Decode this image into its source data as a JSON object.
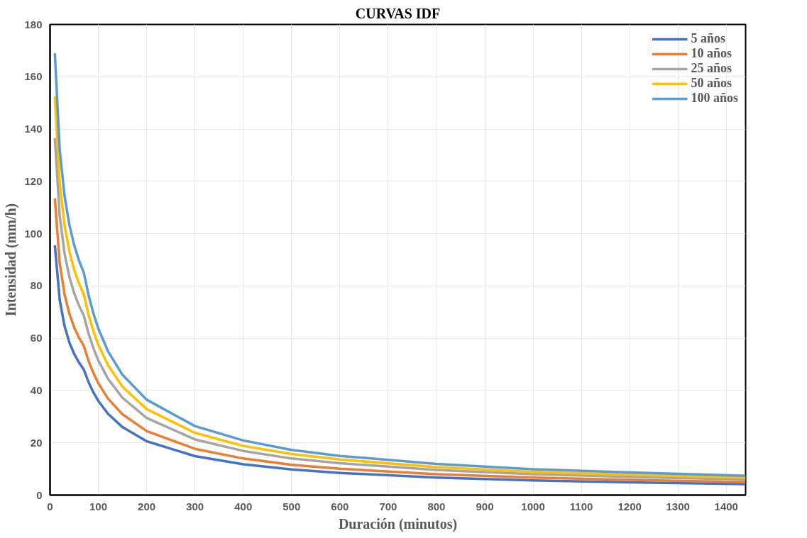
{
  "chart_data": {
    "type": "line",
    "title": "CURVAS IDF",
    "xlabel": "Duración (minutos)",
    "ylabel": "Intensidad (mm/h)",
    "x": [
      10,
      20,
      30,
      40,
      50,
      60,
      70,
      80,
      90,
      100,
      120,
      150,
      200,
      300,
      400,
      500,
      600,
      800,
      1000,
      1200,
      1440
    ],
    "series": [
      {
        "name": "5 años",
        "color": "#4472c4",
        "values": [
          95.5,
          74.7,
          64.7,
          58.4,
          54.0,
          50.7,
          48.0,
          43.1,
          39.2,
          36.0,
          31.1,
          26.0,
          20.6,
          14.9,
          11.8,
          9.8,
          8.5,
          6.7,
          5.6,
          4.9,
          4.2
        ]
      },
      {
        "name": "10 años",
        "color": "#ed7d31",
        "values": [
          113.5,
          88.7,
          76.9,
          69.4,
          64.2,
          60.2,
          57.0,
          51.2,
          46.6,
          42.8,
          36.9,
          30.9,
          24.5,
          17.7,
          14.0,
          11.6,
          10.1,
          8.0,
          6.7,
          5.8,
          5.0
        ]
      },
      {
        "name": "25 años",
        "color": "#a5a5a5",
        "values": [
          136.5,
          106.8,
          92.5,
          83.5,
          77.2,
          72.5,
          68.6,
          61.6,
          56.1,
          51.5,
          44.5,
          37.2,
          29.5,
          21.3,
          16.9,
          14.0,
          12.2,
          9.6,
          8.0,
          7.0,
          6.0
        ]
      },
      {
        "name": "50 años",
        "color": "#ffc000",
        "values": [
          152.5,
          119.3,
          103.3,
          93.3,
          86.2,
          81.0,
          76.7,
          68.8,
          62.6,
          57.5,
          49.7,
          41.5,
          32.9,
          23.8,
          18.8,
          15.7,
          13.6,
          10.7,
          8.9,
          7.8,
          6.7
        ]
      },
      {
        "name": "100 años",
        "color": "#5b9bd5",
        "values": [
          169.0,
          132.2,
          114.5,
          103.4,
          95.6,
          89.7,
          85.0,
          76.3,
          69.4,
          63.7,
          55.0,
          46.0,
          36.5,
          26.4,
          20.9,
          17.3,
          15.0,
          11.9,
          9.9,
          8.7,
          7.4
        ]
      }
    ],
    "xlim": [
      0,
      1440
    ],
    "ylim": [
      0,
      180
    ],
    "xticks": [
      0,
      100,
      200,
      300,
      400,
      500,
      600,
      700,
      800,
      900,
      1000,
      1100,
      1200,
      1300,
      1400
    ],
    "yticks": [
      0,
      20,
      40,
      60,
      80,
      100,
      120,
      140,
      160,
      180
    ],
    "grid": true,
    "legend": "top right",
    "marker": "none",
    "line_style": "solid"
  }
}
